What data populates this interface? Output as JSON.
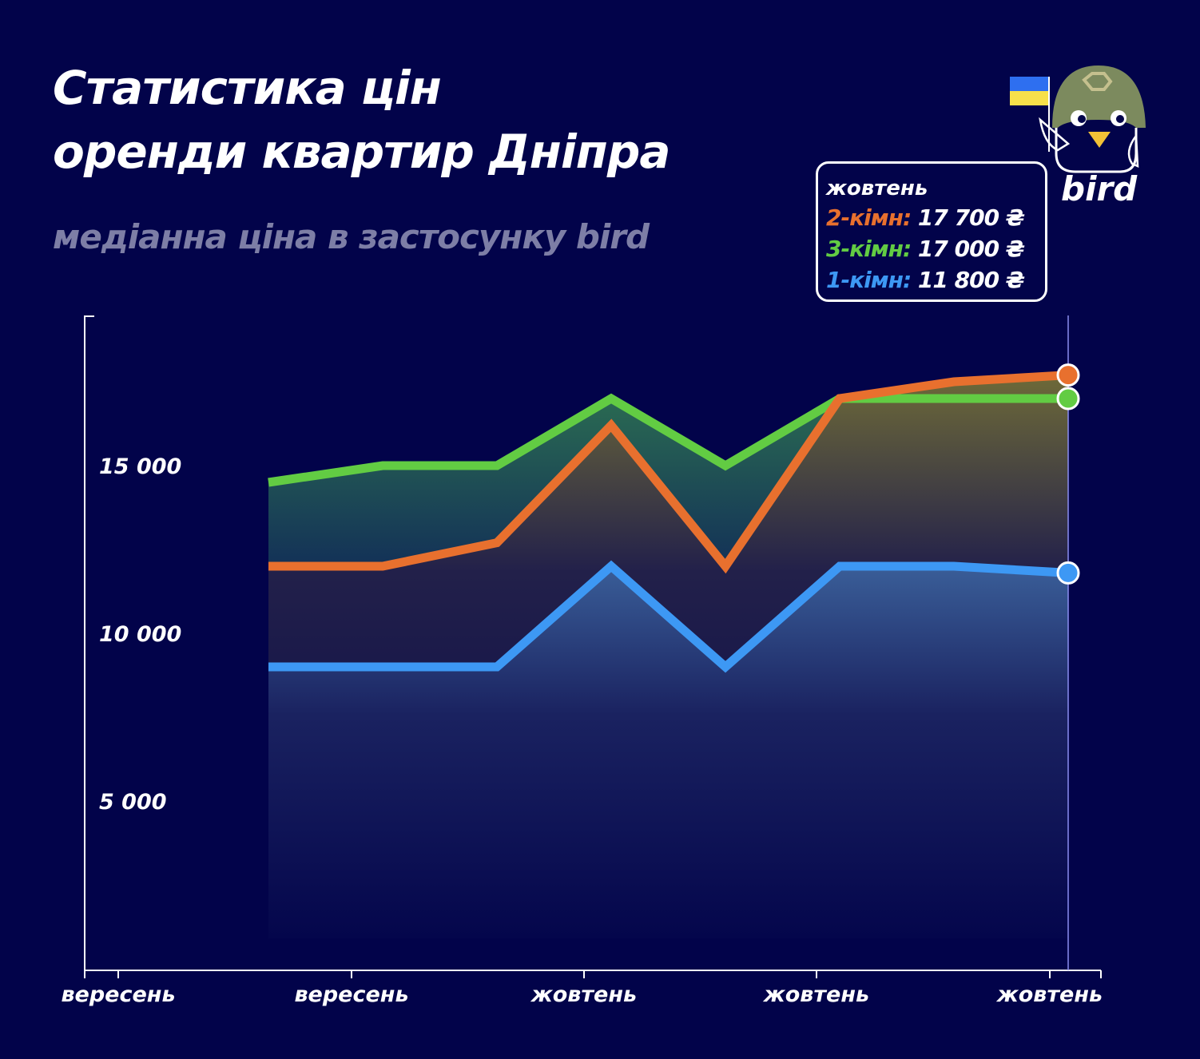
{
  "title_line1": "Статистика цін",
  "title_line2": "оренди квартир Дніпра",
  "subtitle": "медіанна ціна в застосунку bird",
  "logo": {
    "text": "bird",
    "icon": "bird-in-helmet-with-ukrainian-flag"
  },
  "tooltip": {
    "header": "жовтень",
    "rows": [
      {
        "label": "2-кімн:",
        "value": "17 700 ₴",
        "color": "#e8702e"
      },
      {
        "label": "3-кімн:",
        "value": "17 000 ₴",
        "color": "#62cc43"
      },
      {
        "label": "1-кімн:",
        "value": "11 800 ₴",
        "color": "#3d98f4"
      }
    ]
  },
  "chart_data": {
    "type": "area",
    "title": "Статистика цін оренди квартир Дніпра",
    "subtitle": "медіанна ціна в застосунку bird",
    "x_tick_labels": [
      "вересень",
      "вересень",
      "жовтень",
      "жовтень",
      "жовтень"
    ],
    "y_tick_labels": [
      "5 000",
      "10 000",
      "15 000"
    ],
    "y_ticks": [
      5000,
      10000,
      15000
    ],
    "ylim": [
      0,
      19500
    ],
    "grid": false,
    "series": [
      {
        "name": "3-кімн",
        "color": "#62cc43",
        "values": [
          14500,
          15000,
          15000,
          17000,
          15000,
          17000,
          17000,
          17000
        ]
      },
      {
        "name": "2-кімн",
        "color": "#e8702e",
        "values": [
          12000,
          12000,
          12700,
          16200,
          12000,
          17000,
          17500,
          17700
        ]
      },
      {
        "name": "1-кімн",
        "color": "#3d98f4",
        "values": [
          9000,
          9000,
          9000,
          12000,
          9000,
          12000,
          12000,
          11800
        ]
      }
    ]
  }
}
